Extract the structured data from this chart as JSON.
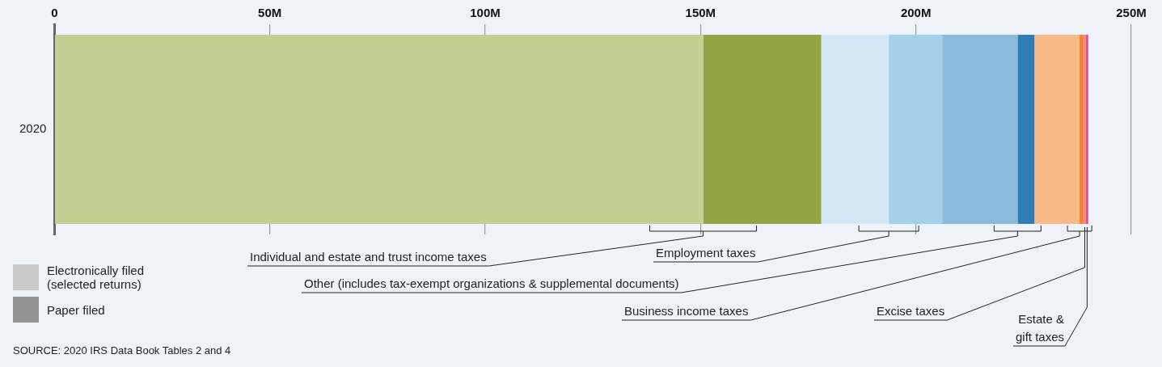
{
  "chart_data": {
    "type": "bar",
    "orientation": "horizontal",
    "stacked": true,
    "grid": "x",
    "categories": [
      "2020"
    ],
    "series": [
      {
        "color": "#c4cf95",
        "values": [
          150.6
        ]
      },
      {
        "color": "#93a445",
        "values": [
          27.4
        ]
      },
      {
        "color": "#d3e8f4",
        "values": [
          15.7
        ]
      },
      {
        "color": "#a6d0e9",
        "values": [
          12.4
        ]
      },
      {
        "color": "#8bbadb",
        "values": [
          17.5
        ]
      },
      {
        "color": "#2f7db5",
        "values": [
          3.9
        ]
      },
      {
        "color": "#f9b988",
        "values": [
          10.5
        ]
      },
      {
        "color": "#f58025",
        "values": [
          0.9
        ]
      },
      {
        "color": "#ee8a8a",
        "values": [
          0.6
        ]
      },
      {
        "color": "#d94b8c",
        "values": [
          0.5
        ]
      }
    ],
    "xlim": [
      0,
      250
    ],
    "xticks": [
      {
        "value": 0,
        "label": "0"
      },
      {
        "value": 50,
        "label": "50M"
      },
      {
        "value": 100,
        "label": "100M"
      },
      {
        "value": 150,
        "label": "150M"
      },
      {
        "value": 200,
        "label": "200M"
      },
      {
        "value": 250,
        "label": "250M"
      }
    ],
    "annotations": [
      "Electronically filed (selected returns)",
      "Paper filed",
      "SOURCE: 2020 IRS Data Book Tables 2 and 4",
      "Individual and estate and trust income taxes",
      "Employment taxes",
      "Other (includes tax-exempt organizations & supplemental documents)",
      "Business income taxes",
      "Excise taxes",
      "Estate & gift taxes"
    ]
  }
}
